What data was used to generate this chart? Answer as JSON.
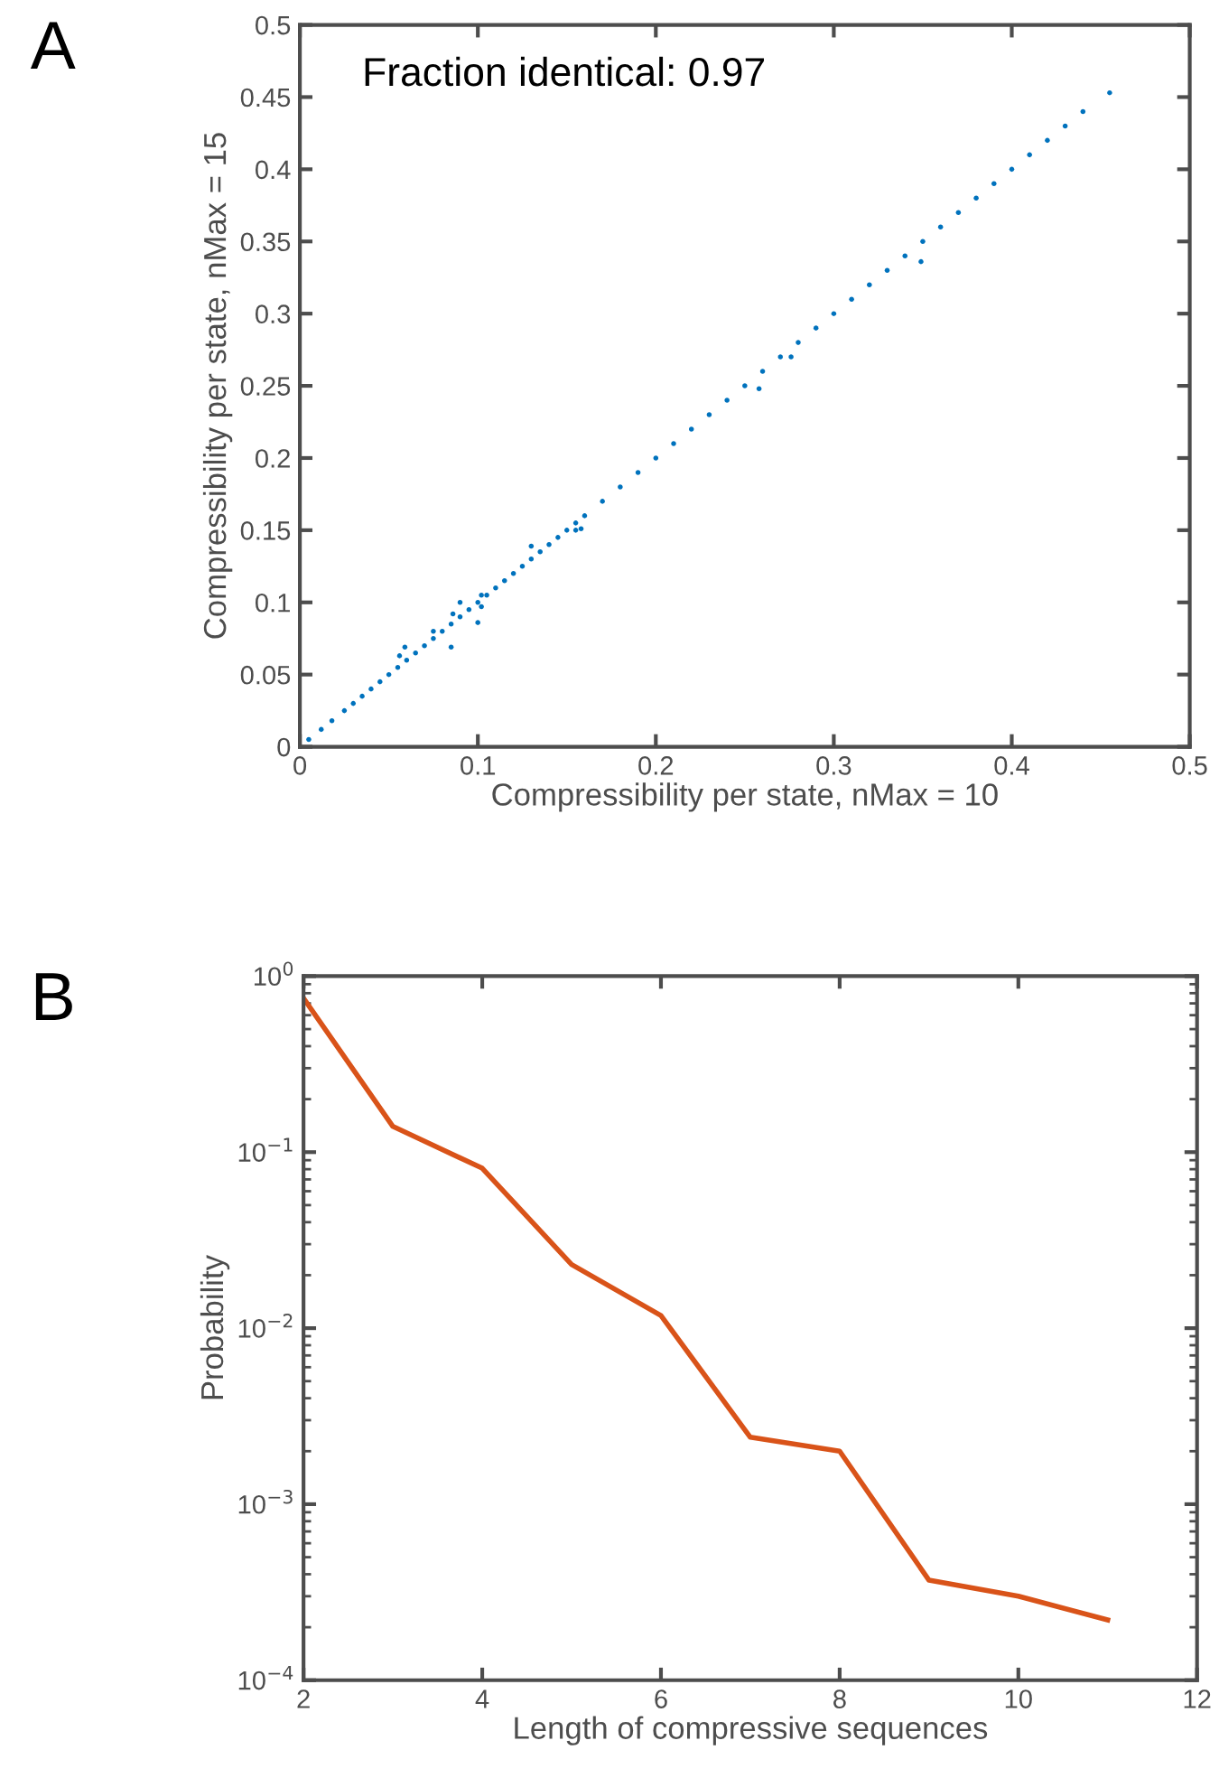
{
  "chart_data": [
    {
      "type": "scatter",
      "xlabel": "Compressibility per state, nMax = 10",
      "ylabel": "Compressibility per state, nMax = 15",
      "annotations": [
        "A",
        "Fraction identical: 0.97"
      ],
      "xlim": [
        0,
        0.5
      ],
      "ylim": [
        0,
        0.5
      ],
      "xticks": [
        0,
        0.1,
        0.2,
        0.3,
        0.4,
        0.5
      ],
      "yticks": [
        0,
        0.05,
        0.1,
        0.15,
        0.2,
        0.25,
        0.3,
        0.35,
        0.4,
        0.45,
        0.5
      ],
      "marker": "circle",
      "series": [
        {
          "color": "#0072bd",
          "x": [
            0.005,
            0.012,
            0.018,
            0.025,
            0.03,
            0.035,
            0.04,
            0.045,
            0.05,
            0.055,
            0.06,
            0.065,
            0.07,
            0.075,
            0.08,
            0.085,
            0.09,
            0.095,
            0.1,
            0.105,
            0.11,
            0.115,
            0.12,
            0.125,
            0.13,
            0.135,
            0.14,
            0.145,
            0.15,
            0.155,
            0.16,
            0.17,
            0.18,
            0.19,
            0.2,
            0.21,
            0.22,
            0.23,
            0.24,
            0.25,
            0.26,
            0.27,
            0.28,
            0.29,
            0.3,
            0.31,
            0.32,
            0.33,
            0.34,
            0.35,
            0.36,
            0.37,
            0.38,
            0.39,
            0.4,
            0.41,
            0.42,
            0.43,
            0.44,
            0.455,
            0.13,
            0.1,
            0.085,
            0.09,
            0.086,
            0.059,
            0.056,
            0.102,
            0.102,
            0.158,
            0.349,
            0.258,
            0.276,
            0.075,
            0.155
          ],
          "values": [
            0.005,
            0.012,
            0.018,
            0.025,
            0.03,
            0.035,
            0.04,
            0.045,
            0.05,
            0.055,
            0.06,
            0.065,
            0.07,
            0.075,
            0.08,
            0.085,
            0.09,
            0.095,
            0.1,
            0.105,
            0.11,
            0.115,
            0.12,
            0.125,
            0.13,
            0.135,
            0.14,
            0.145,
            0.15,
            0.155,
            0.16,
            0.17,
            0.18,
            0.19,
            0.2,
            0.21,
            0.22,
            0.23,
            0.24,
            0.25,
            0.26,
            0.27,
            0.28,
            0.29,
            0.3,
            0.31,
            0.32,
            0.33,
            0.34,
            0.35,
            0.36,
            0.37,
            0.38,
            0.39,
            0.4,
            0.41,
            0.42,
            0.43,
            0.44,
            0.453,
            0.139,
            0.086,
            0.069,
            0.1,
            0.092,
            0.069,
            0.063,
            0.105,
            0.097,
            0.151,
            0.336,
            0.248,
            0.27,
            0.08,
            0.15
          ]
        }
      ]
    },
    {
      "type": "line",
      "xlabel": "Length of compressive sequences",
      "ylabel": "Probability",
      "annotations": [
        "B"
      ],
      "log": "y",
      "xlim": [
        2,
        12
      ],
      "ylim": [
        0.0001,
        1
      ],
      "xticks": [
        2,
        4,
        6,
        8,
        10,
        12
      ],
      "yticks": [
        {
          "value": 0.0001,
          "label": "10$^{−4}$"
        },
        {
          "value": 0.001,
          "label": "10$^{−3}$"
        },
        {
          "value": 0.01,
          "label": "10$^{−2}$"
        },
        {
          "value": 0.1,
          "label": "10$^{−1}$"
        },
        {
          "value": 1,
          "label": "10$^{0}$"
        }
      ],
      "marker": "none",
      "line_style": "solid",
      "series": [
        {
          "color": "#d95319",
          "x": [
            2,
            3,
            4,
            5,
            6,
            7,
            8,
            9,
            10,
            11
          ],
          "values": [
            0.75,
            0.14,
            0.081,
            0.023,
            0.0118,
            0.0024,
            0.002,
            0.00037,
            0.0003,
            0.00022
          ]
        }
      ]
    }
  ]
}
